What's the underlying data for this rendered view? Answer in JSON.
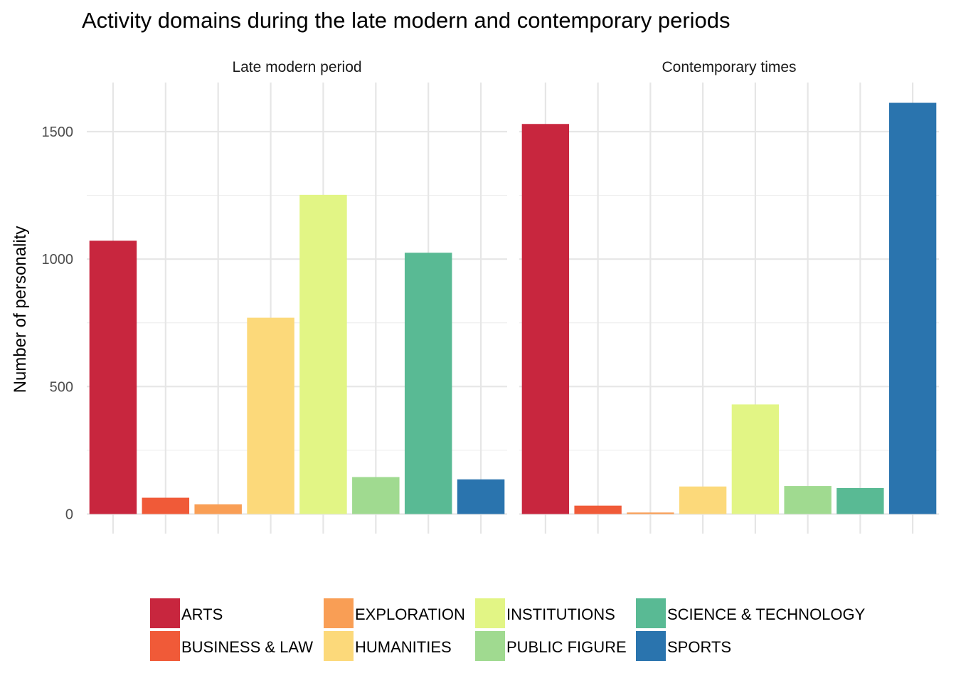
{
  "chart_data": {
    "type": "bar",
    "title": "Activity domains during the late modern and contemporary periods",
    "ylabel": "Number of personality",
    "xlabel": "",
    "ylim": [
      0,
      1680
    ],
    "yticks": [
      0,
      500,
      1000,
      1500
    ],
    "grid": true,
    "legend_position": "bottom",
    "categories": [
      "ARTS",
      "BUSINESS & LAW",
      "EXPLORATION",
      "HUMANITIES",
      "INSTITUTIONS",
      "PUBLIC FIGURE",
      "SCIENCE & TECHNOLOGY",
      "SPORTS"
    ],
    "colors": [
      "#c8263e",
      "#f05a38",
      "#f99e55",
      "#fcd97a",
      "#e2f585",
      "#a0da90",
      "#59ba94",
      "#2a74ae"
    ],
    "panels": [
      {
        "name": "Late modern period",
        "values": [
          1072,
          64,
          38,
          770,
          1252,
          145,
          1025,
          136
        ]
      },
      {
        "name": "Contemporary times",
        "values": [
          1530,
          33,
          6,
          108,
          430,
          110,
          102,
          1613
        ]
      }
    ],
    "legend": {
      "order": [
        "ARTS",
        "BUSINESS & LAW",
        "EXPLORATION",
        "HUMANITIES",
        "INSTITUTIONS",
        "PUBLIC FIGURE",
        "SCIENCE & TECHNOLOGY",
        "SPORTS"
      ]
    }
  }
}
